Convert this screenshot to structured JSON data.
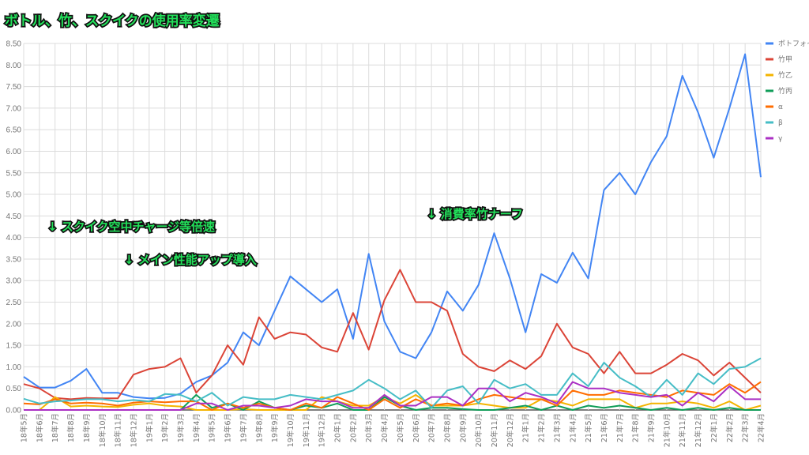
{
  "chart_data": {
    "type": "line",
    "title": "ボトル、竹、スクイクの使用率変遷",
    "xlabel": "",
    "ylabel": "",
    "ylim": [
      0,
      8.5
    ],
    "yticks": [
      "0.00",
      "0.50",
      "1.00",
      "1.50",
      "2.00",
      "2.50",
      "3.00",
      "3.50",
      "4.00",
      "4.50",
      "5.00",
      "5.50",
      "6.00",
      "6.50",
      "7.00",
      "7.50",
      "8.00",
      "8.50"
    ],
    "grid": true,
    "legend_position": "right",
    "categories": [
      "18年5月",
      "18年6月",
      "18年7月",
      "18年8月",
      "18年9月",
      "18年10月",
      "18年11月",
      "18年12月",
      "19年1月",
      "19年2月",
      "19年3月",
      "19年4月",
      "19年5月",
      "19年6月",
      "19年7月",
      "19年8月",
      "19年9月",
      "19年10月",
      "19年11月",
      "19年12月",
      "20年1月",
      "20年2月",
      "20年3月",
      "20年4月",
      "20年5月",
      "20年6月",
      "20年7月",
      "20年8月",
      "20年9月",
      "20年10月",
      "20年11月",
      "20年12月",
      "21年1月",
      "21年2月",
      "21年3月",
      "21年4月",
      "21年5月",
      "21年6月",
      "21年7月",
      "21年8月",
      "21年9月",
      "21年10月",
      "21年11月",
      "21年12月",
      "22年1月",
      "22年2月",
      "22年3月",
      "22年4月"
    ],
    "series": [
      {
        "name": "ボトフォイ",
        "color": "#4285f4",
        "values": [
          0.77,
          0.52,
          0.52,
          0.68,
          0.95,
          0.4,
          0.4,
          0.3,
          0.27,
          0.28,
          0.38,
          0.65,
          0.8,
          1.1,
          1.8,
          1.5,
          2.3,
          3.1,
          2.8,
          2.5,
          2.8,
          1.65,
          3.62,
          2.05,
          1.35,
          1.2,
          1.8,
          2.75,
          2.3,
          2.9,
          4.1,
          3.05,
          1.8,
          3.15,
          2.95,
          3.65,
          3.05,
          5.1,
          5.5,
          5.0,
          5.75,
          6.35,
          7.75,
          6.9,
          5.85,
          7.0,
          8.25,
          5.4
        ]
      },
      {
        "name": "竹甲",
        "color": "#db4437",
        "values": [
          0.6,
          0.5,
          0.28,
          0.25,
          0.28,
          0.27,
          0.27,
          0.82,
          0.95,
          1.0,
          1.2,
          0.4,
          0.8,
          1.5,
          1.05,
          2.15,
          1.65,
          1.8,
          1.75,
          1.45,
          1.35,
          2.25,
          1.4,
          2.55,
          3.25,
          2.5,
          2.5,
          2.3,
          1.3,
          1.0,
          0.9,
          1.15,
          0.95,
          1.25,
          2.0,
          1.45,
          1.3,
          0.85,
          1.35,
          0.85,
          0.85,
          1.05,
          1.3,
          1.15,
          0.8,
          1.1,
          0.75,
          0.4
        ]
      },
      {
        "name": "竹乙",
        "color": "#f4b400",
        "values": [
          0,
          0,
          0.3,
          0.08,
          0.1,
          0.08,
          0.07,
          0.12,
          0.15,
          0.1,
          0.08,
          0,
          0,
          0,
          0.02,
          0,
          0,
          0,
          0,
          0.3,
          0.2,
          0.1,
          0.1,
          0.3,
          0.15,
          0.35,
          0.1,
          0.1,
          0.1,
          0.15,
          0.1,
          0.05,
          0.05,
          0.25,
          0.2,
          0.1,
          0.25,
          0.25,
          0.25,
          0.05,
          0.15,
          0.15,
          0.2,
          0.15,
          0.05,
          0.2,
          0,
          0.1
        ]
      },
      {
        "name": "竹丙",
        "color": "#0f9d58",
        "values": [
          0,
          0,
          0,
          0,
          0,
          0,
          0,
          0,
          0,
          0,
          0,
          0.35,
          0.05,
          0.15,
          0,
          0.2,
          0.05,
          0,
          0.1,
          0.05,
          0.15,
          0,
          0,
          0.3,
          0.1,
          0,
          0.05,
          0.05,
          0.02,
          0,
          0,
          0.05,
          0.1,
          0,
          0.1,
          0,
          0.1,
          0.05,
          0.1,
          0.05,
          0,
          0.05,
          0,
          0.05,
          0,
          0.05,
          0,
          0
        ]
      },
      {
        "name": "α",
        "color": "#ff6d01",
        "values": [
          0.15,
          0.13,
          0.25,
          0.15,
          0.17,
          0.15,
          0.1,
          0.17,
          0.2,
          0.18,
          0.2,
          0.2,
          0,
          0.15,
          0.05,
          0.15,
          0.05,
          0,
          0.15,
          0.05,
          0.3,
          0.15,
          0,
          0.25,
          0.05,
          0.25,
          0.1,
          0.15,
          0.1,
          0.25,
          0.35,
          0.3,
          0.25,
          0.25,
          0.1,
          0.45,
          0.35,
          0.35,
          0.45,
          0.4,
          0.35,
          0.3,
          0.45,
          0.4,
          0.35,
          0.6,
          0.4,
          0.65
        ]
      },
      {
        "name": "β",
        "color": "#46bdc6",
        "values": [
          0.26,
          0.15,
          0.2,
          0.22,
          0.25,
          0.25,
          0.2,
          0.23,
          0.2,
          0.37,
          0.35,
          0.2,
          0.4,
          0.1,
          0.3,
          0.25,
          0.25,
          0.35,
          0.3,
          0.25,
          0.35,
          0.45,
          0.7,
          0.5,
          0.25,
          0.45,
          0.05,
          0.45,
          0.55,
          0.15,
          0.7,
          0.5,
          0.6,
          0.35,
          0.35,
          0.85,
          0.55,
          1.1,
          0.75,
          0.55,
          0.3,
          0.7,
          0.35,
          0.85,
          0.6,
          0.95,
          1.0,
          1.2
        ]
      },
      {
        "name": "γ",
        "color": "#ab30c4",
        "values": [
          0,
          0,
          0,
          0,
          0,
          0,
          0,
          0,
          0,
          0,
          0,
          0.15,
          0.15,
          0,
          0.1,
          0.1,
          0.05,
          0.1,
          0.25,
          0.2,
          0.2,
          0.05,
          0.05,
          0.35,
          0.1,
          0.1,
          0.3,
          0.3,
          0.1,
          0.5,
          0.5,
          0.2,
          0.4,
          0.3,
          0.15,
          0.65,
          0.5,
          0.5,
          0.4,
          0.35,
          0.3,
          0.35,
          0.1,
          0.4,
          0.2,
          0.55,
          0.25,
          0.25
        ]
      }
    ],
    "annotations": [
      {
        "text": "↓ スクイク空中チャージ等倍速",
        "at": "18年6月"
      },
      {
        "text": "↓ メイン性能アップ導入",
        "at": "18年11月"
      },
      {
        "text": "↓ 消費率竹ナーフ",
        "at": "20年8月"
      }
    ]
  }
}
